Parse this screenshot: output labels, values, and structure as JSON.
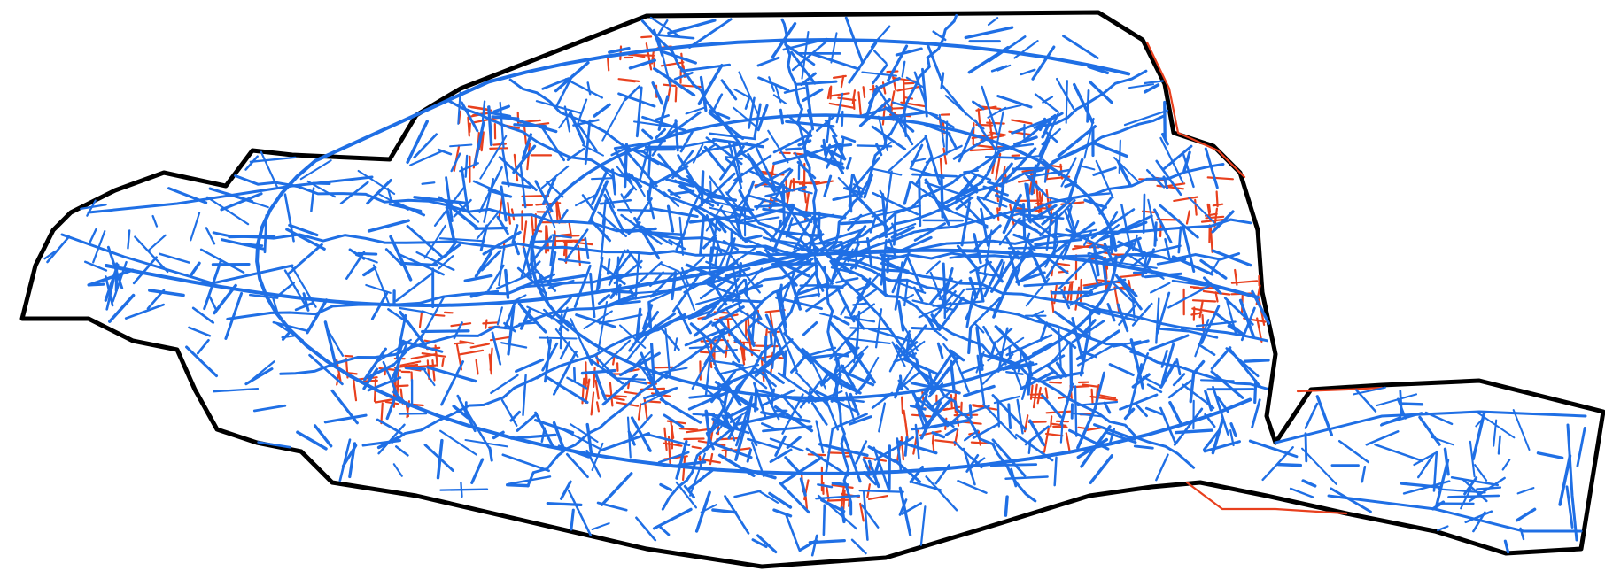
{
  "map": {
    "colors": {
      "background": "#ffffff",
      "boundary": "#000000",
      "network_primary": "#1f6fe5",
      "network_secondary": "#e8401e"
    },
    "layers": [
      {
        "name": "city-boundary",
        "color": "#000000"
      },
      {
        "name": "network-primary",
        "color": "#1f6fe5"
      },
      {
        "name": "network-secondary",
        "color": "#e8401e"
      }
    ]
  }
}
